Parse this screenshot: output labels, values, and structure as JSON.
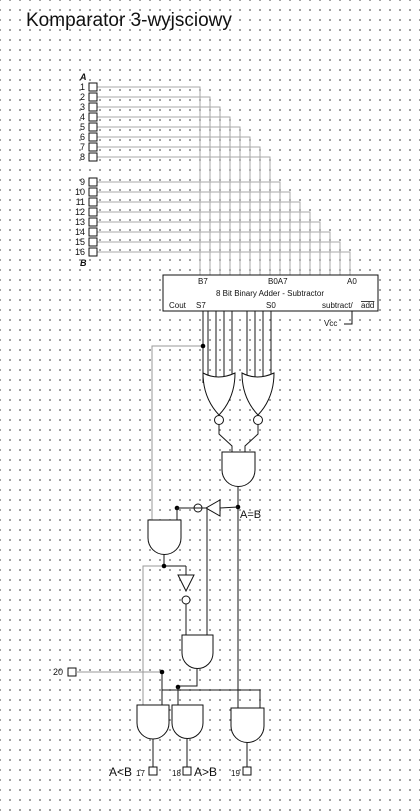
{
  "title": "Komparator 3-wyjsciowy",
  "bus_a": {
    "name": "A",
    "pins": [
      "1",
      "2",
      "3",
      "4",
      "5",
      "6",
      "7",
      "8"
    ]
  },
  "bus_b": {
    "name": "B",
    "pins": [
      "9",
      "10",
      "11",
      "12",
      "13",
      "14",
      "15",
      "16"
    ]
  },
  "adder": {
    "name": "8 Bit Binary Adder - Subtractor",
    "label_b7": "B7",
    "label_b0a7": "B0A7",
    "label_a0": "A0",
    "label_cout": "Cout",
    "label_s7": "S7",
    "label_s0": "S0",
    "label_subtract": "subtract/",
    "label_add": "add",
    "label_vcc": "Vcc"
  },
  "equal_label": "A=B",
  "input_20": "20",
  "outputs": {
    "lt_label": "A<B",
    "lt_pin": "17",
    "gt_pin": "18",
    "gt_label": "A>B",
    "eq_pin": "19"
  },
  "colors": {
    "wire": "#1a1a1a",
    "light_wire": "#9a9a9a",
    "junction": "#000000"
  }
}
